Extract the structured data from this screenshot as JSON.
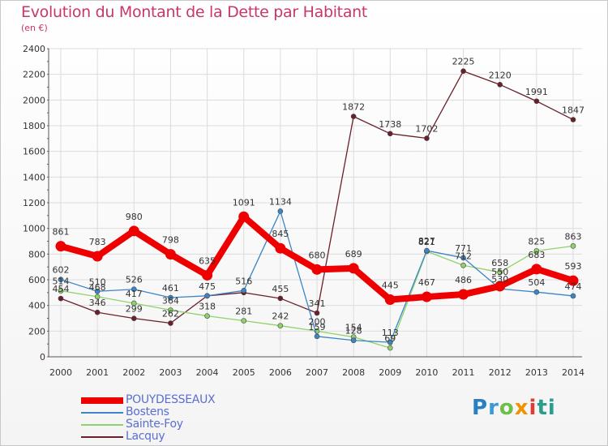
{
  "title": "Evolution du Montant de la Dette par Habitant",
  "subtitle": "(en €)",
  "logo_text": "Proxiti",
  "chart_data": {
    "type": "line",
    "title": "Evolution du Montant de la Dette par Habitant",
    "ylabel": "(en €)",
    "xlabel": "",
    "x": [
      "2000",
      "2001",
      "2002",
      "2003",
      "2004",
      "2005",
      "2006",
      "2007",
      "2008",
      "2009",
      "2010",
      "2011",
      "2012",
      "2013",
      "2014"
    ],
    "ylim": [
      0,
      2400
    ],
    "yticks": [
      "0",
      "200",
      "400",
      "600",
      "800",
      "1000",
      "1200",
      "1400",
      "1600",
      "1800",
      "2000",
      "2200",
      "2400"
    ],
    "grid": true,
    "legend_position": "bottom-left",
    "series": [
      {
        "name": "POUYDESSEAUX",
        "color": "#ee0000",
        "values": [
          861,
          783,
          980,
          798,
          635,
          1091,
          845,
          680,
          689,
          445,
          467,
          486,
          550,
          683,
          593
        ],
        "labels": [
          "861",
          "783",
          "980",
          "798",
          "635",
          "1091",
          "845",
          "680",
          "689",
          "445",
          "467",
          "486",
          "550",
          "683",
          "593"
        ]
      },
      {
        "name": "Bostens",
        "color": "#3d85c6",
        "values": [
          602,
          510,
          526,
          461,
          475,
          516,
          1134,
          159,
          128,
          113,
          827,
          771,
          530,
          504,
          474
        ],
        "labels": [
          "602",
          "510",
          "526",
          "461",
          "475",
          "516",
          "1134",
          "159",
          "128",
          "113",
          "827",
          "771",
          "530",
          "504",
          "474"
        ]
      },
      {
        "name": "Sainte-Foy",
        "color": "#8ed36a",
        "values": [
          514,
          468,
          417,
          364,
          318,
          281,
          242,
          200,
          154,
          69,
          821,
          712,
          658,
          825,
          863
        ],
        "labels": [
          "514",
          "468",
          "417",
          "364",
          "318",
          "281",
          "242",
          "200",
          "154",
          "69",
          "821",
          "712",
          "658",
          "825",
          "863"
        ]
      },
      {
        "name": "Lacquy",
        "color": "#6b1f2a",
        "values": [
          454,
          346,
          299,
          262,
          475,
          500,
          455,
          341,
          1872,
          1738,
          1702,
          2225,
          2120,
          1991,
          1847
        ],
        "labels": [
          "454",
          "346",
          "299",
          "262",
          "",
          "",
          "455",
          "341",
          "1872",
          "1738",
          "1702",
          "2225",
          "2120",
          "1991",
          "1847"
        ]
      }
    ]
  }
}
